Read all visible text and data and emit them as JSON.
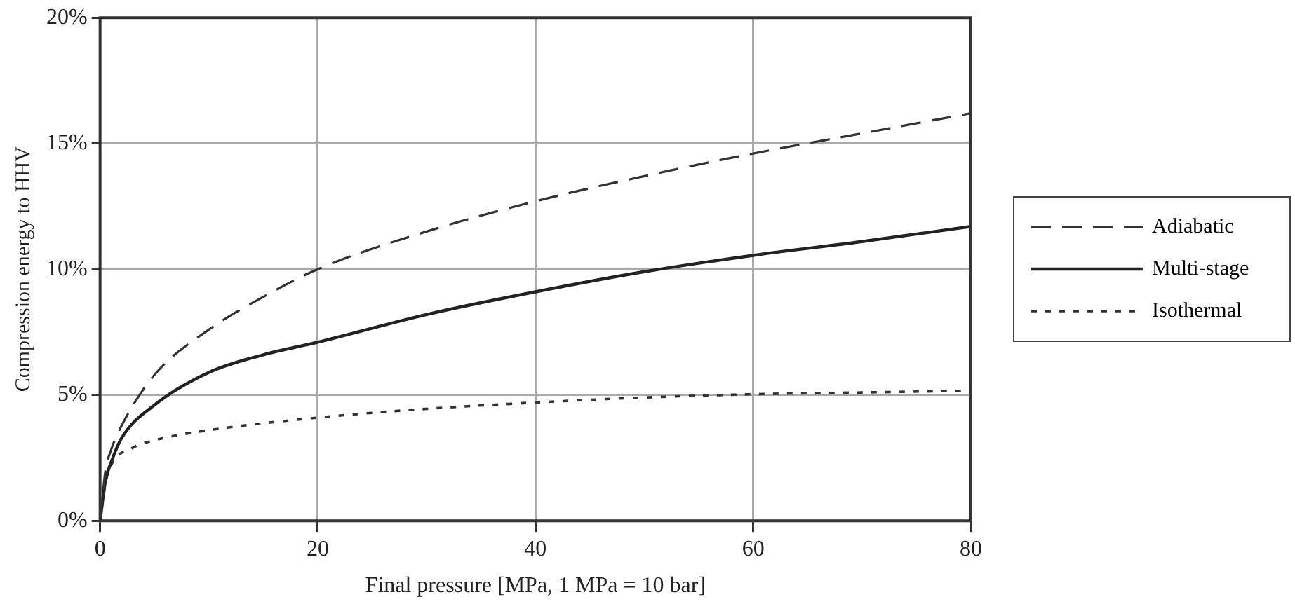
{
  "chart_data": {
    "type": "line",
    "xlabel": "Final pressure [MPa, 1 MPa = 10 bar]",
    "ylabel": "Compression energy to HHV",
    "xlim": [
      0,
      80
    ],
    "xticks": [
      0,
      20,
      40,
      60,
      80
    ],
    "ylim": [
      0,
      20
    ],
    "yticks": [
      {
        "value": 0,
        "label": "0%"
      },
      {
        "value": 5,
        "label": "5%"
      },
      {
        "value": 10,
        "label": "10%"
      },
      {
        "value": 15,
        "label": "15%"
      },
      {
        "value": 20,
        "label": "20%"
      }
    ],
    "grid": true,
    "legend": "right",
    "marker": "none",
    "series": [
      {
        "name": "Adiabatic",
        "color": "#333333",
        "line_style": "dashed",
        "x": [
          0,
          0.5,
          1,
          2,
          5,
          10,
          15,
          20,
          30,
          40,
          50,
          60,
          70,
          80
        ],
        "values": [
          0,
          2,
          2.8,
          3.8,
          5.8,
          7.6,
          8.9,
          10,
          11.5,
          12.7,
          13.7,
          14.6,
          15.4,
          16.2
        ]
      },
      {
        "name": "Multi-stage",
        "color": "#222222",
        "line_style": "solid",
        "x": [
          0,
          0.5,
          1,
          2,
          5,
          10,
          15,
          20,
          30,
          40,
          50,
          60,
          70,
          80
        ],
        "values": [
          0,
          1.6,
          2.3,
          3.3,
          4.6,
          5.9,
          6.6,
          7.1,
          8.2,
          9.1,
          9.9,
          10.55,
          11.1,
          11.7
        ]
      },
      {
        "name": "Isothermal",
        "color": "#333333",
        "line_style": "dotted",
        "x": [
          0,
          0.5,
          1,
          3,
          5,
          10,
          20,
          30,
          40,
          50,
          60,
          70,
          80
        ],
        "values": [
          0,
          1.5,
          2.2,
          2.9,
          3.2,
          3.6,
          4.1,
          4.45,
          4.7,
          4.9,
          5.03,
          5.1,
          5.17
        ]
      }
    ]
  }
}
